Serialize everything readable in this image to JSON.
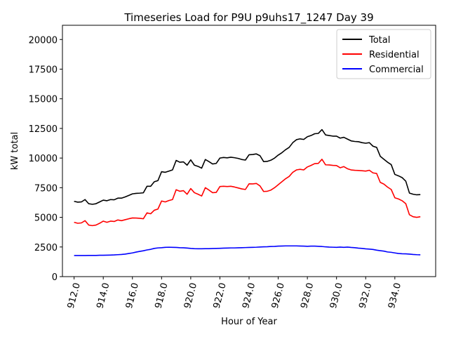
{
  "chart_data": {
    "type": "line",
    "title": "Timeseries Load for P9U p9uhs17_1247  Day 39",
    "xlabel": "Hour of Year",
    "ylabel": "kW total",
    "xlim": [
      911.2,
      936.8
    ],
    "ylim": [
      0,
      21200
    ],
    "x_ticks": [
      912,
      914,
      916,
      918,
      920,
      922,
      924,
      926,
      928,
      930,
      932,
      934
    ],
    "x_tick_labels": [
      "912.0",
      "914.0",
      "916.0",
      "918.0",
      "920.0",
      "922.0",
      "924.0",
      "926.0",
      "928.0",
      "930.0",
      "932.0",
      "934.0"
    ],
    "y_ticks": [
      0,
      2500,
      5000,
      7500,
      10000,
      12500,
      15000,
      17500,
      20000
    ],
    "y_tick_labels": [
      "0",
      "2500",
      "5000",
      "7500",
      "10000",
      "12500",
      "15000",
      "17500",
      "20000"
    ],
    "legend_position": "top-right",
    "x_start": 912.0,
    "x_step": 0.25,
    "series": [
      {
        "name": "Total",
        "color": "#000000",
        "values": [
          6350,
          6280,
          6300,
          6500,
          6150,
          6100,
          6150,
          6300,
          6450,
          6400,
          6500,
          6480,
          6620,
          6620,
          6720,
          6850,
          6980,
          7020,
          7040,
          7070,
          7620,
          7620,
          8000,
          8100,
          8850,
          8800,
          8900,
          9000,
          9800,
          9650,
          9680,
          9400,
          9850,
          9400,
          9300,
          9150,
          9880,
          9700,
          9500,
          9550,
          10000,
          10050,
          10020,
          10070,
          10030,
          9970,
          9880,
          9830,
          10280,
          10300,
          10350,
          10200,
          9700,
          9720,
          9820,
          10000,
          10250,
          10450,
          10700,
          10900,
          11300,
          11550,
          11620,
          11570,
          11800,
          11900,
          12050,
          12080,
          12400,
          11950,
          11900,
          11850,
          11850,
          11680,
          11750,
          11600,
          11450,
          11400,
          11380,
          11300,
          11250,
          11300,
          11000,
          10900,
          10150,
          9900,
          9650,
          9450,
          8620,
          8500,
          8350,
          8050,
          7050,
          6950,
          6900,
          6920
        ]
      },
      {
        "name": "Residential",
        "color": "#ff0000",
        "values": [
          4580,
          4500,
          4530,
          4720,
          4350,
          4300,
          4350,
          4500,
          4680,
          4580,
          4680,
          4650,
          4780,
          4720,
          4800,
          4880,
          4950,
          4940,
          4920,
          4880,
          5380,
          5300,
          5600,
          5700,
          6380,
          6300,
          6420,
          6500,
          7330,
          7200,
          7250,
          6950,
          7430,
          7080,
          6950,
          6800,
          7500,
          7300,
          7080,
          7100,
          7600,
          7620,
          7600,
          7620,
          7560,
          7480,
          7400,
          7350,
          7830,
          7820,
          7860,
          7650,
          7180,
          7200,
          7300,
          7500,
          7750,
          8000,
          8250,
          8450,
          8800,
          9000,
          9050,
          9000,
          9250,
          9380,
          9530,
          9550,
          9900,
          9430,
          9420,
          9380,
          9370,
          9180,
          9280,
          9100,
          9000,
          8970,
          8950,
          8930,
          8900,
          8970,
          8750,
          8700,
          7950,
          7800,
          7550,
          7350,
          6650,
          6550,
          6400,
          6150,
          5220,
          5050,
          5000,
          5050
        ]
      },
      {
        "name": "Commercial",
        "color": "#0000ff",
        "values": [
          1780,
          1780,
          1780,
          1780,
          1790,
          1790,
          1790,
          1800,
          1800,
          1810,
          1820,
          1830,
          1850,
          1870,
          1900,
          1950,
          2000,
          2070,
          2130,
          2180,
          2250,
          2300,
          2380,
          2420,
          2440,
          2470,
          2480,
          2470,
          2460,
          2440,
          2430,
          2410,
          2380,
          2360,
          2350,
          2350,
          2360,
          2360,
          2370,
          2380,
          2390,
          2400,
          2410,
          2420,
          2420,
          2430,
          2440,
          2450,
          2460,
          2470,
          2480,
          2500,
          2510,
          2520,
          2540,
          2550,
          2570,
          2580,
          2590,
          2590,
          2590,
          2590,
          2580,
          2570,
          2560,
          2570,
          2570,
          2560,
          2540,
          2510,
          2490,
          2480,
          2470,
          2490,
          2470,
          2490,
          2460,
          2440,
          2400,
          2380,
          2340,
          2320,
          2290,
          2230,
          2190,
          2150,
          2080,
          2050,
          2000,
          1950,
          1930,
          1920,
          1900,
          1870,
          1850,
          1840
        ]
      }
    ]
  }
}
